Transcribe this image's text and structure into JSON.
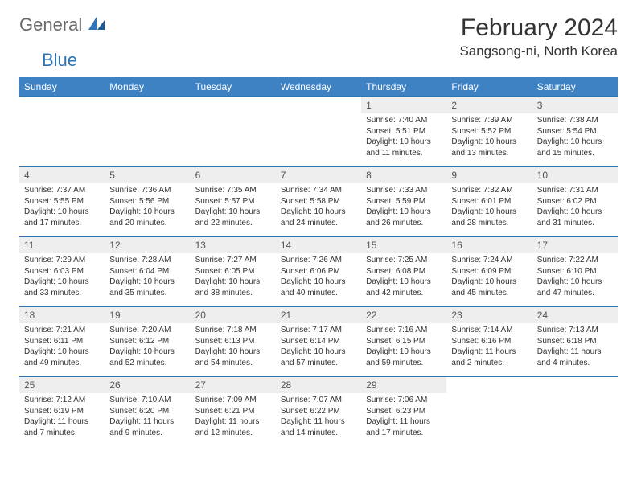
{
  "brand": {
    "part1": "General",
    "part2": "Blue"
  },
  "title": "February 2024",
  "location": "Sangsong-ni, North Korea",
  "colors": {
    "headerbg": "#3e82c4",
    "border": "#2f74b5",
    "dayhead": "#eeeeee",
    "logo_gray": "#6a6a6a",
    "logo_blue": "#2f74b5"
  },
  "weekdays": [
    "Sunday",
    "Monday",
    "Tuesday",
    "Wednesday",
    "Thursday",
    "Friday",
    "Saturday"
  ],
  "weeks": [
    [
      null,
      null,
      null,
      null,
      {
        "n": "1",
        "sr": "7:40 AM",
        "ss": "5:51 PM",
        "dl": "10 hours and 11 minutes."
      },
      {
        "n": "2",
        "sr": "7:39 AM",
        "ss": "5:52 PM",
        "dl": "10 hours and 13 minutes."
      },
      {
        "n": "3",
        "sr": "7:38 AM",
        "ss": "5:54 PM",
        "dl": "10 hours and 15 minutes."
      }
    ],
    [
      {
        "n": "4",
        "sr": "7:37 AM",
        "ss": "5:55 PM",
        "dl": "10 hours and 17 minutes."
      },
      {
        "n": "5",
        "sr": "7:36 AM",
        "ss": "5:56 PM",
        "dl": "10 hours and 20 minutes."
      },
      {
        "n": "6",
        "sr": "7:35 AM",
        "ss": "5:57 PM",
        "dl": "10 hours and 22 minutes."
      },
      {
        "n": "7",
        "sr": "7:34 AM",
        "ss": "5:58 PM",
        "dl": "10 hours and 24 minutes."
      },
      {
        "n": "8",
        "sr": "7:33 AM",
        "ss": "5:59 PM",
        "dl": "10 hours and 26 minutes."
      },
      {
        "n": "9",
        "sr": "7:32 AM",
        "ss": "6:01 PM",
        "dl": "10 hours and 28 minutes."
      },
      {
        "n": "10",
        "sr": "7:31 AM",
        "ss": "6:02 PM",
        "dl": "10 hours and 31 minutes."
      }
    ],
    [
      {
        "n": "11",
        "sr": "7:29 AM",
        "ss": "6:03 PM",
        "dl": "10 hours and 33 minutes."
      },
      {
        "n": "12",
        "sr": "7:28 AM",
        "ss": "6:04 PM",
        "dl": "10 hours and 35 minutes."
      },
      {
        "n": "13",
        "sr": "7:27 AM",
        "ss": "6:05 PM",
        "dl": "10 hours and 38 minutes."
      },
      {
        "n": "14",
        "sr": "7:26 AM",
        "ss": "6:06 PM",
        "dl": "10 hours and 40 minutes."
      },
      {
        "n": "15",
        "sr": "7:25 AM",
        "ss": "6:08 PM",
        "dl": "10 hours and 42 minutes."
      },
      {
        "n": "16",
        "sr": "7:24 AM",
        "ss": "6:09 PM",
        "dl": "10 hours and 45 minutes."
      },
      {
        "n": "17",
        "sr": "7:22 AM",
        "ss": "6:10 PM",
        "dl": "10 hours and 47 minutes."
      }
    ],
    [
      {
        "n": "18",
        "sr": "7:21 AM",
        "ss": "6:11 PM",
        "dl": "10 hours and 49 minutes."
      },
      {
        "n": "19",
        "sr": "7:20 AM",
        "ss": "6:12 PM",
        "dl": "10 hours and 52 minutes."
      },
      {
        "n": "20",
        "sr": "7:18 AM",
        "ss": "6:13 PM",
        "dl": "10 hours and 54 minutes."
      },
      {
        "n": "21",
        "sr": "7:17 AM",
        "ss": "6:14 PM",
        "dl": "10 hours and 57 minutes."
      },
      {
        "n": "22",
        "sr": "7:16 AM",
        "ss": "6:15 PM",
        "dl": "10 hours and 59 minutes."
      },
      {
        "n": "23",
        "sr": "7:14 AM",
        "ss": "6:16 PM",
        "dl": "11 hours and 2 minutes."
      },
      {
        "n": "24",
        "sr": "7:13 AM",
        "ss": "6:18 PM",
        "dl": "11 hours and 4 minutes."
      }
    ],
    [
      {
        "n": "25",
        "sr": "7:12 AM",
        "ss": "6:19 PM",
        "dl": "11 hours and 7 minutes."
      },
      {
        "n": "26",
        "sr": "7:10 AM",
        "ss": "6:20 PM",
        "dl": "11 hours and 9 minutes."
      },
      {
        "n": "27",
        "sr": "7:09 AM",
        "ss": "6:21 PM",
        "dl": "11 hours and 12 minutes."
      },
      {
        "n": "28",
        "sr": "7:07 AM",
        "ss": "6:22 PM",
        "dl": "11 hours and 14 minutes."
      },
      {
        "n": "29",
        "sr": "7:06 AM",
        "ss": "6:23 PM",
        "dl": "11 hours and 17 minutes."
      },
      null,
      null
    ]
  ]
}
